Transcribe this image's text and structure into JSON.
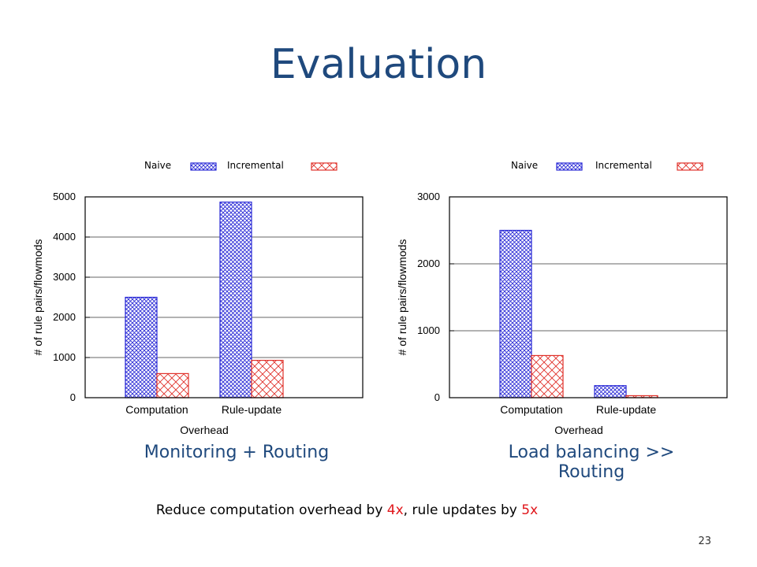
{
  "slide": {
    "title": "Evaluation",
    "page_number": "23",
    "summary": {
      "prefix": "Reduce computation overhead by ",
      "hl1": "4x",
      "mid": ", rule updates by ",
      "hl2": "5x"
    }
  },
  "colors": {
    "title": "#1f497d",
    "naive": "#2a2ad6",
    "incremental": "#e0312a",
    "highlight": "#e0161b"
  },
  "chart_data": [
    {
      "type": "bar",
      "caption": "Monitoring + Routing",
      "categories": [
        "Computation",
        "Rule-update"
      ],
      "series": [
        {
          "name": "Naive",
          "values": [
            2500,
            4870
          ]
        },
        {
          "name": "Incremental",
          "values": [
            600,
            930
          ]
        }
      ],
      "xlabel": "Overhead",
      "ylabel": "# of rule pairs/flowmods",
      "ylim": [
        0,
        5000
      ],
      "yticks": [
        0,
        1000,
        2000,
        3000,
        4000,
        5000
      ],
      "legend": "top",
      "grid": true
    },
    {
      "type": "bar",
      "caption": "Load balancing >> Routing",
      "categories": [
        "Computation",
        "Rule-update"
      ],
      "series": [
        {
          "name": "Naive",
          "values": [
            2500,
            180
          ]
        },
        {
          "name": "Incremental",
          "values": [
            630,
            30
          ]
        }
      ],
      "xlabel": "Overhead",
      "ylabel": "# of rule pairs/flowmods",
      "ylim": [
        0,
        3000
      ],
      "yticks": [
        0,
        1000,
        2000,
        3000
      ],
      "legend": "top",
      "grid": true
    }
  ]
}
